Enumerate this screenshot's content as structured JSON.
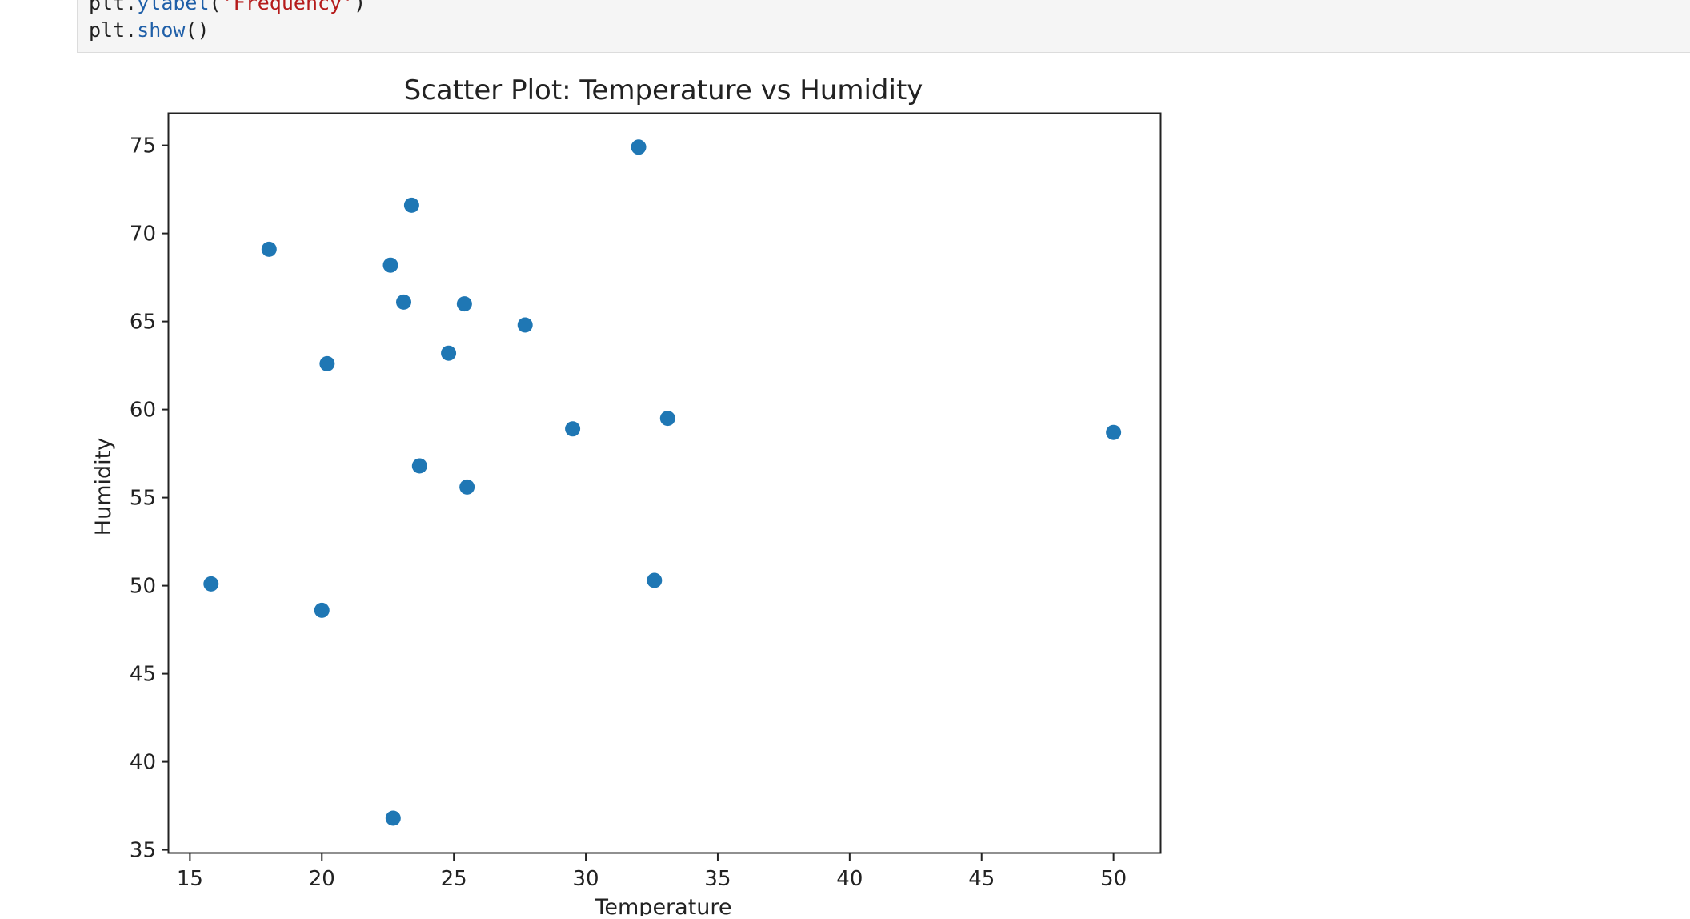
{
  "code_cell": {
    "lines": [
      [
        {
          "text": "plt.",
          "kind": "plain"
        },
        {
          "text": "ylabel",
          "kind": "func"
        },
        {
          "text": "(",
          "kind": "plain"
        },
        {
          "text": "'Frequency'",
          "kind": "str"
        },
        {
          "text": ")",
          "kind": "plain"
        }
      ],
      [
        {
          "text": "plt.",
          "kind": "plain"
        },
        {
          "text": "show",
          "kind": "func"
        },
        {
          "text": "()",
          "kind": "plain"
        }
      ]
    ]
  },
  "chart_data": {
    "type": "scatter",
    "title": "Scatter Plot: Temperature vs Humidity",
    "xlabel": "Temperature",
    "ylabel": "Humidity",
    "xlim": [
      14.2,
      51.8
    ],
    "ylim": [
      34.8,
      76.8
    ],
    "xticks": [
      15,
      20,
      25,
      30,
      35,
      40,
      45,
      50
    ],
    "yticks": [
      35,
      40,
      45,
      50,
      55,
      60,
      65,
      70,
      75
    ],
    "grid": false,
    "marker_color": "#1f77b4",
    "points": [
      {
        "x": 32.0,
        "y": 74.9
      },
      {
        "x": 23.4,
        "y": 71.6
      },
      {
        "x": 18.0,
        "y": 69.1
      },
      {
        "x": 22.6,
        "y": 68.2
      },
      {
        "x": 23.1,
        "y": 66.1
      },
      {
        "x": 25.4,
        "y": 66.0
      },
      {
        "x": 27.7,
        "y": 64.8
      },
      {
        "x": 24.8,
        "y": 63.2
      },
      {
        "x": 20.2,
        "y": 62.6
      },
      {
        "x": 33.1,
        "y": 59.5
      },
      {
        "x": 29.5,
        "y": 58.9
      },
      {
        "x": 50.0,
        "y": 58.7
      },
      {
        "x": 23.7,
        "y": 56.8
      },
      {
        "x": 25.5,
        "y": 55.6
      },
      {
        "x": 15.8,
        "y": 50.1
      },
      {
        "x": 32.6,
        "y": 50.3
      },
      {
        "x": 20.0,
        "y": 48.6
      },
      {
        "x": 22.7,
        "y": 36.8
      }
    ]
  }
}
